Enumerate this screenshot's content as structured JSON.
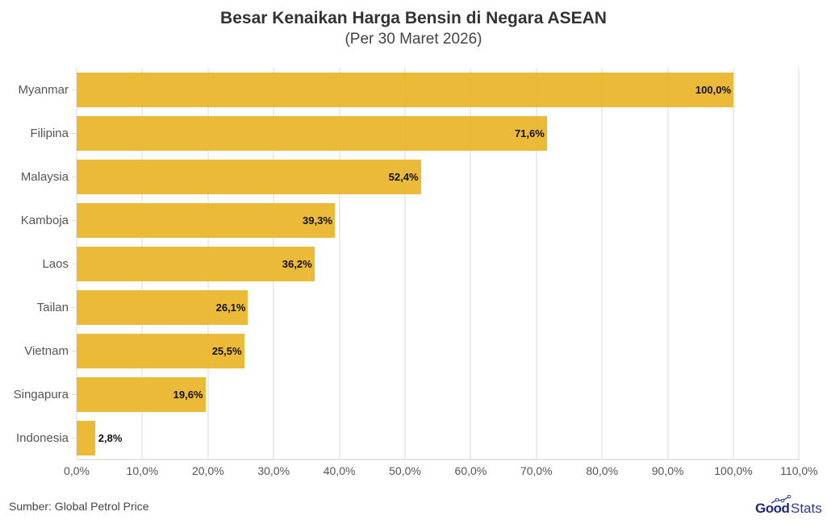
{
  "header": {
    "title": "Besar Kenaikan Harga Bensin di Negara ASEAN",
    "subtitle": "(Per 30 Maret 2026)"
  },
  "footer": {
    "source": "Sumber: Global Petrol Price",
    "logo_bold": "Good",
    "logo_light": "Stats"
  },
  "colors": {
    "bar": "#E9B428",
    "logo": "#1F2A7A",
    "grid": "#ECECEC"
  },
  "chart_data": {
    "type": "bar",
    "orientation": "horizontal",
    "title": "Besar Kenaikan Harga Bensin di Negara ASEAN",
    "subtitle": "(Per 30 Maret 2026)",
    "xlabel": "",
    "ylabel": "",
    "categories": [
      "Myanmar",
      "Filipina",
      "Malaysia",
      "Kamboja",
      "Laos",
      "Tailan",
      "Vietnam",
      "Singapura",
      "Indonesia"
    ],
    "values": [
      100.0,
      71.6,
      52.4,
      39.3,
      36.2,
      26.1,
      25.5,
      19.6,
      2.8
    ],
    "value_labels": [
      "100,0%",
      "71,6%",
      "52,4%",
      "39,3%",
      "36,2%",
      "26,1%",
      "25,5%",
      "19,6%",
      "2,8%"
    ],
    "xlim": [
      0,
      110
    ],
    "x_ticks": [
      "0,0%",
      "10,0%",
      "20,0%",
      "30,0%",
      "40,0%",
      "50,0%",
      "60,0%",
      "70,0%",
      "80,0%",
      "90,0%",
      "100,0%",
      "110,0%"
    ],
    "grid": "vertical",
    "legend": "none",
    "source": "Sumber: Global Petrol Price"
  }
}
